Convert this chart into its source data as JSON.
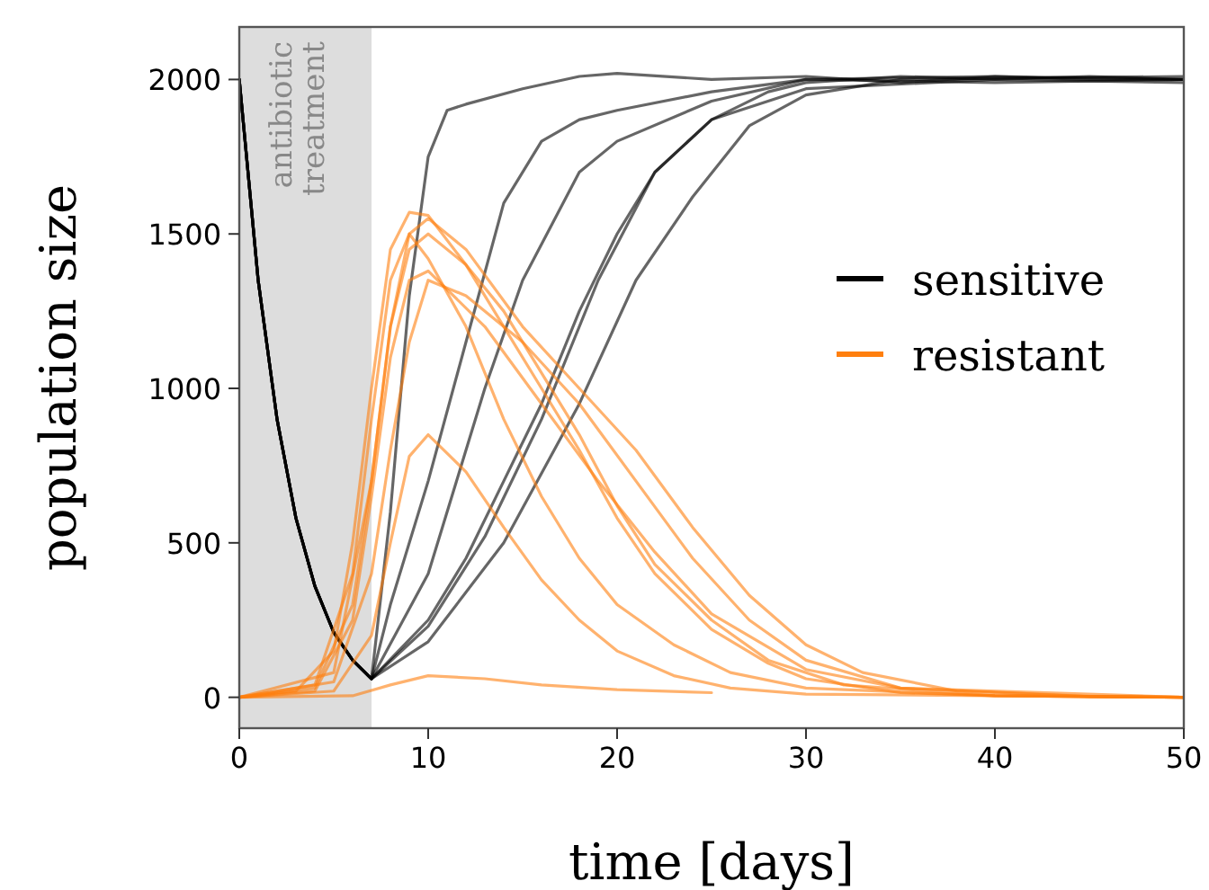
{
  "chart_data": {
    "type": "line",
    "xlabel": "time [days]",
    "ylabel": "population size",
    "xlim": [
      0,
      50
    ],
    "ylim": [
      -100,
      2170
    ],
    "xticks": [
      0,
      10,
      20,
      30,
      40,
      50
    ],
    "yticks": [
      0,
      500,
      1000,
      1500,
      2000
    ],
    "legend": "right",
    "grid": false,
    "marker": "none",
    "line_style": "solid",
    "bands": [
      {
        "axis": "x",
        "from": 0,
        "to": 7,
        "label": "antibiotic\ntreatment",
        "color": "#dddddd"
      }
    ],
    "series": [
      {
        "name": "sensitive",
        "color": "#000000",
        "x": [
          0,
          1,
          2,
          3,
          4,
          5,
          6,
          7,
          8,
          9,
          10,
          11,
          12,
          15,
          18,
          20,
          25,
          30,
          35,
          40,
          45,
          50
        ],
        "values": [
          2000,
          1350,
          900,
          580,
          360,
          210,
          120,
          60,
          600,
          1300,
          1750,
          1900,
          1920,
          1970,
          2010,
          2020,
          2000,
          2010,
          1990,
          2010,
          2000,
          2000
        ]
      },
      {
        "color": "#000000",
        "x": [
          0,
          1,
          2,
          3,
          4,
          5,
          6,
          7,
          8,
          10,
          12,
          14,
          16,
          18,
          20,
          25,
          30,
          40,
          50
        ],
        "values": [
          2000,
          1350,
          900,
          580,
          360,
          210,
          120,
          60,
          300,
          700,
          1150,
          1600,
          1800,
          1870,
          1900,
          1960,
          2000,
          2010,
          2000
        ]
      },
      {
        "color": "#000000",
        "x": [
          0,
          1,
          2,
          3,
          4,
          5,
          6,
          7,
          10,
          13,
          15,
          18,
          20,
          25,
          30,
          40,
          50
        ],
        "values": [
          2000,
          1350,
          900,
          580,
          360,
          210,
          120,
          60,
          400,
          1000,
          1350,
          1700,
          1800,
          1930,
          2000,
          1990,
          2000
        ]
      },
      {
        "color": "#000000",
        "x": [
          0,
          1,
          2,
          3,
          4,
          5,
          6,
          7,
          10,
          12,
          14,
          16,
          18,
          20,
          22,
          25,
          28,
          30,
          35,
          40,
          45,
          50
        ],
        "values": [
          2000,
          1350,
          900,
          580,
          360,
          210,
          120,
          60,
          250,
          450,
          700,
          950,
          1250,
          1500,
          1700,
          1870,
          1960,
          1990,
          2010,
          2000,
          2010,
          2000
        ]
      },
      {
        "color": "#000000",
        "x": [
          0,
          1,
          2,
          3,
          4,
          5,
          6,
          7,
          10,
          13,
          16,
          19,
          22,
          25,
          30,
          40,
          50
        ],
        "values": [
          2000,
          1350,
          900,
          580,
          360,
          210,
          120,
          60,
          230,
          520,
          900,
          1350,
          1700,
          1870,
          1970,
          2000,
          1990
        ]
      },
      {
        "color": "#000000",
        "x": [
          0,
          1,
          2,
          3,
          4,
          5,
          6,
          7,
          10,
          14,
          18,
          21,
          24,
          27,
          30,
          35,
          50
        ],
        "values": [
          2000,
          1350,
          900,
          580,
          360,
          210,
          120,
          60,
          180,
          500,
          950,
          1350,
          1620,
          1850,
          1950,
          2000,
          2010
        ]
      },
      {
        "name": "resistant",
        "color": "#ff7f0e",
        "x": [
          0,
          3,
          5,
          6,
          7,
          8,
          9,
          10,
          12,
          14,
          16,
          18,
          20,
          22,
          25,
          28,
          30,
          35,
          40,
          50
        ],
        "values": [
          0,
          20,
          150,
          500,
          1000,
          1450,
          1570,
          1560,
          1400,
          1200,
          1000,
          800,
          580,
          400,
          220,
          110,
          60,
          15,
          5,
          0
        ]
      },
      {
        "color": "#ff7f0e",
        "x": [
          0,
          4,
          6,
          7,
          8,
          9,
          10,
          12,
          14,
          16,
          18,
          20,
          22,
          25,
          28,
          32,
          40,
          50
        ],
        "values": [
          0,
          30,
          300,
          700,
          1200,
          1450,
          1500,
          1400,
          1250,
          1050,
          850,
          620,
          430,
          250,
          120,
          40,
          5,
          0
        ]
      },
      {
        "color": "#ff7f0e",
        "x": [
          0,
          4,
          6,
          7,
          8,
          9,
          10,
          13,
          16,
          19,
          22,
          25,
          30,
          35,
          45,
          50
        ],
        "values": [
          0,
          20,
          250,
          650,
          1100,
          1350,
          1380,
          1200,
          950,
          700,
          470,
          270,
          90,
          30,
          3,
          0
        ]
      },
      {
        "color": "#ff7f0e",
        "x": [
          0,
          5,
          7,
          8,
          9,
          10,
          12,
          15,
          18,
          21,
          24,
          27,
          30,
          35,
          50
        ],
        "values": [
          0,
          50,
          400,
          800,
          1150,
          1350,
          1300,
          1150,
          950,
          700,
          450,
          250,
          120,
          30,
          0
        ]
      },
      {
        "color": "#ff7f0e",
        "x": [
          0,
          5,
          7,
          8,
          9,
          10,
          12,
          14,
          16,
          18,
          20,
          23,
          26,
          30,
          50
        ],
        "values": [
          0,
          20,
          200,
          500,
          780,
          850,
          730,
          550,
          380,
          250,
          150,
          70,
          30,
          10,
          0
        ]
      },
      {
        "color": "#ff7f0e",
        "x": [
          0,
          6,
          8,
          10,
          13,
          16,
          20,
          25
        ],
        "values": [
          0,
          5,
          40,
          70,
          60,
          40,
          25,
          15
        ]
      },
      {
        "color": "#ff7f0e",
        "x": [
          0,
          5,
          7,
          8,
          9,
          10,
          12,
          15,
          18,
          21,
          24,
          27,
          30,
          33,
          38,
          45,
          50
        ],
        "values": [
          0,
          80,
          700,
          1200,
          1500,
          1550,
          1450,
          1200,
          1000,
          800,
          550,
          330,
          170,
          80,
          20,
          2,
          0
        ]
      },
      {
        "color": "#ff7f0e",
        "x": [
          0,
          4,
          6,
          7,
          8,
          9,
          10,
          12,
          14,
          16,
          18,
          20,
          23,
          26,
          30,
          40,
          50
        ],
        "values": [
          0,
          40,
          400,
          900,
          1350,
          1500,
          1420,
          1200,
          900,
          650,
          450,
          300,
          170,
          80,
          30,
          5,
          0
        ]
      }
    ]
  }
}
